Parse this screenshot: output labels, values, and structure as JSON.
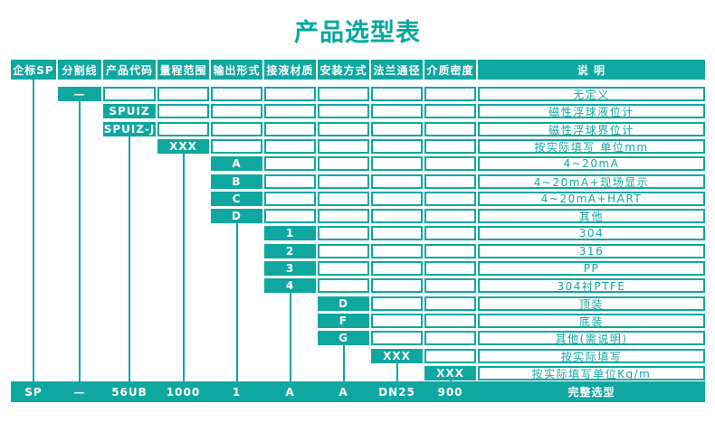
{
  "title": "产品选型表",
  "colors": {
    "teal": "#10a7a0",
    "title_teal": "#00a89e"
  },
  "table": {
    "columns": [
      {
        "key": "sp-standard",
        "label": "企标SP"
      },
      {
        "key": "divider",
        "label": "分割线"
      },
      {
        "key": "product-code",
        "label": "产品代码"
      },
      {
        "key": "range",
        "label": "量程范围"
      },
      {
        "key": "output-form",
        "label": "输出形式"
      },
      {
        "key": "wetted-material",
        "label": "接液材质"
      },
      {
        "key": "installation",
        "label": "安装方式"
      },
      {
        "key": "flange-diameter",
        "label": "法兰通径"
      },
      {
        "key": "medium-density",
        "label": "介质密度"
      },
      {
        "key": "description",
        "label": "说  明"
      }
    ],
    "rows": [
      {
        "col": 1,
        "code": "—",
        "desc": "无定义"
      },
      {
        "col": 2,
        "code": "SPUIZ",
        "desc": "磁性浮球液位计"
      },
      {
        "col": 2,
        "code": "SPUIZ-J",
        "desc": "磁性浮球界位计"
      },
      {
        "col": 3,
        "code": "XXX",
        "desc": "按实际填写 单位mm"
      },
      {
        "col": 4,
        "code": "A",
        "desc": "4~20mA"
      },
      {
        "col": 4,
        "code": "B",
        "desc": "4~20mA+现场显示"
      },
      {
        "col": 4,
        "code": "C",
        "desc": "4~20mA+HART"
      },
      {
        "col": 4,
        "code": "D",
        "desc": "其他"
      },
      {
        "col": 5,
        "code": "1",
        "desc": "304"
      },
      {
        "col": 5,
        "code": "2",
        "desc": "316"
      },
      {
        "col": 5,
        "code": "3",
        "desc": "PP"
      },
      {
        "col": 5,
        "code": "4",
        "desc": "304衬PTFE"
      },
      {
        "col": 6,
        "code": "D",
        "desc": "顶装"
      },
      {
        "col": 6,
        "code": "F",
        "desc": "底装"
      },
      {
        "col": 6,
        "code": "G",
        "desc": "其他(需说明)"
      },
      {
        "col": 7,
        "code": "XXX",
        "desc": "按实际填写"
      },
      {
        "col": 8,
        "code": "XXX",
        "desc": "按实际填写单位Kg/m"
      }
    ],
    "summary": {
      "values": [
        "SP",
        "—",
        "56UB",
        "1000",
        "1",
        "A",
        "A",
        "DN25",
        "900"
      ],
      "desc": "完整选型"
    }
  }
}
